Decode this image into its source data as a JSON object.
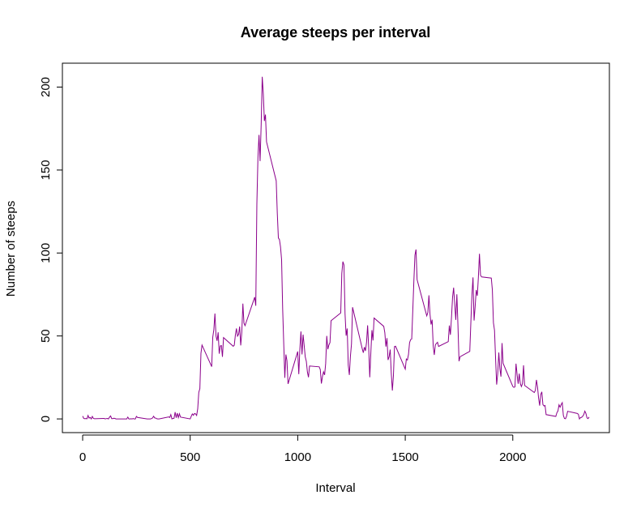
{
  "chart_data": {
    "type": "line",
    "title": "Average steeps per interval",
    "x_label": "Interval",
    "y_label": "Number of steeps",
    "color": "#8b008b",
    "x": [
      0,
      5,
      10,
      15,
      20,
      25,
      30,
      35,
      40,
      45,
      50,
      55,
      100,
      105,
      110,
      115,
      120,
      125,
      130,
      135,
      140,
      145,
      150,
      155,
      200,
      205,
      210,
      215,
      220,
      225,
      230,
      235,
      240,
      245,
      250,
      255,
      300,
      305,
      310,
      315,
      320,
      325,
      330,
      335,
      340,
      345,
      350,
      355,
      400,
      405,
      410,
      415,
      420,
      425,
      430,
      435,
      440,
      445,
      450,
      455,
      500,
      505,
      510,
      515,
      520,
      525,
      530,
      535,
      540,
      545,
      550,
      555,
      600,
      605,
      610,
      615,
      620,
      625,
      630,
      635,
      640,
      645,
      650,
      655,
      700,
      705,
      710,
      715,
      720,
      725,
      730,
      735,
      740,
      745,
      750,
      755,
      800,
      805,
      810,
      815,
      820,
      825,
      830,
      835,
      840,
      845,
      850,
      855,
      900,
      905,
      910,
      915,
      920,
      925,
      930,
      935,
      940,
      945,
      950,
      955,
      1000,
      1005,
      1010,
      1015,
      1020,
      1025,
      1030,
      1035,
      1040,
      1045,
      1050,
      1055,
      1100,
      1105,
      1110,
      1115,
      1120,
      1125,
      1130,
      1135,
      1140,
      1145,
      1150,
      1155,
      1200,
      1205,
      1210,
      1215,
      1220,
      1225,
      1230,
      1235,
      1240,
      1245,
      1250,
      1255,
      1300,
      1305,
      1310,
      1315,
      1320,
      1325,
      1330,
      1335,
      1340,
      1345,
      1350,
      1355,
      1400,
      1405,
      1410,
      1415,
      1420,
      1425,
      1430,
      1435,
      1440,
      1445,
      1450,
      1455,
      1500,
      1505,
      1510,
      1515,
      1520,
      1525,
      1530,
      1535,
      1540,
      1545,
      1550,
      1555,
      1600,
      1605,
      1610,
      1615,
      1620,
      1625,
      1630,
      1635,
      1640,
      1645,
      1650,
      1655,
      1700,
      1705,
      1710,
      1715,
      1720,
      1725,
      1730,
      1735,
      1740,
      1745,
      1750,
      1755,
      1800,
      1805,
      1810,
      1815,
      1820,
      1825,
      1830,
      1835,
      1840,
      1845,
      1850,
      1855,
      1900,
      1905,
      1910,
      1915,
      1920,
      1925,
      1930,
      1935,
      1940,
      1945,
      1950,
      1955,
      2000,
      2005,
      2010,
      2015,
      2020,
      2025,
      2030,
      2035,
      2040,
      2045,
      2050,
      2055,
      2100,
      2105,
      2110,
      2115,
      2120,
      2125,
      2130,
      2135,
      2140,
      2145,
      2150,
      2155,
      2200,
      2205,
      2210,
      2215,
      2220,
      2225,
      2230,
      2235,
      2240,
      2245,
      2250,
      2255,
      2300,
      2305,
      2310,
      2315,
      2320,
      2325,
      2330,
      2335,
      2340,
      2345,
      2350,
      2355
    ],
    "values": [
      1.7,
      0.3,
      0.1,
      0.2,
      0.1,
      2.1,
      0.5,
      0.9,
      0,
      1.5,
      0.3,
      0.1,
      0.3,
      0,
      0.2,
      0.3,
      0,
      1.1,
      1.8,
      0.2,
      0.2,
      0.4,
      0.3,
      0,
      0,
      0,
      1.1,
      0,
      0,
      0.1,
      0,
      0.2,
      0,
      0,
      1.5,
      0.9,
      0,
      0,
      0,
      0,
      0.2,
      0.6,
      1.6,
      0.6,
      0.5,
      0.1,
      0,
      0,
      1.2,
      0.9,
      2.6,
      0,
      0.3,
      0.4,
      4.1,
      0.7,
      3.5,
      0.8,
      3.1,
      1.1,
      0,
      1.6,
      3,
      2.2,
      3.3,
      3,
      2.1,
      6.1,
      16,
      18.3,
      39.5,
      44.5,
      31.5,
      49.3,
      53.8,
      63.5,
      50,
      47.1,
      52.2,
      39.3,
      44,
      44.2,
      37.4,
      49,
      43.8,
      44.4,
      50.5,
      54.5,
      49.9,
      51,
      55.7,
      44.3,
      52.3,
      69.5,
      57.8,
      56.2,
      73.4,
      68.2,
      129.4,
      157.5,
      171.2,
      155.4,
      177.3,
      206.2,
      195.9,
      179.6,
      183.4,
      167,
      143.5,
      124,
      109.1,
      108.1,
      103.7,
      95.96,
      66.2,
      45.2,
      24.8,
      38.8,
      34.98,
      21.1,
      40.6,
      26.98,
      42.4,
      52.7,
      38.9,
      50.8,
      44.3,
      37.4,
      34.7,
      28.3,
      25.1,
      31.9,
      31.4,
      29.7,
      21.3,
      25.5,
      28.4,
      26.5,
      33.4,
      50,
      42,
      44.6,
      46,
      59.2,
      63.9,
      87.7,
      94.8,
      92.8,
      63.4,
      50.2,
      54.5,
      32.4,
      26.5,
      37.7,
      45.1,
      67.3,
      42.3,
      39.9,
      43.3,
      40.98,
      46.2,
      56.4,
      42.8,
      25.1,
      39.96,
      53.5,
      47.3,
      60.8,
      55.8,
      51.96,
      43.6,
      48.7,
      35.5,
      37.5,
      41.8,
      27.5,
      17.1,
      26.1,
      43.6,
      43.8,
      30,
      36.1,
      35.5,
      38.8,
      45.96,
      47.8,
      48.1,
      65.3,
      82.9,
      98.7,
      102.1,
      83.96,
      62.1,
      64.1,
      74.5,
      63.2,
      56.9,
      59.8,
      43.9,
      38.6,
      44.7,
      45.5,
      46.2,
      43.7,
      46.6,
      56.3,
      50.7,
      61.2,
      73.4,
      79.1,
      68.9,
      59.7,
      75.1,
      56.5,
      34.8,
      37.5,
      40.7,
      58,
      74.7,
      85.3,
      59.3,
      67.8,
      77.7,
      74.2,
      85.3,
      99.5,
      86.6,
      85.6,
      84.9,
      77.8,
      58,
      53.4,
      36.3,
      20.7,
      27.4,
      40,
      30.2,
      25.5,
      45.7,
      33.5,
      19.6,
      19,
      19.3,
      33.3,
      26.8,
      21.2,
      27.3,
      21.3,
      19.5,
      21.3,
      32.3,
      20.2,
      15.9,
      17.2,
      23.5,
      19.2,
      12.5,
      8,
      14.7,
      16.3,
      8.7,
      7.8,
      8.1,
      2.6,
      1.5,
      3.7,
      4.8,
      8.5,
      7.1,
      8.7,
      9.8,
      2.2,
      0.3,
      0.1,
      1.6,
      4.6,
      3.3,
      2.8,
      0,
      0.8,
      0.96,
      1.6,
      2.6,
      4.7,
      3.3,
      0.6,
      0.2,
      1.1
    ],
    "xlim": [
      -94.2,
      2449.2
    ],
    "ylim": [
      -8.25,
      214.4
    ],
    "xticks": [
      0,
      500,
      1000,
      1500,
      2000
    ],
    "yticks": [
      0,
      50,
      100,
      150,
      200
    ]
  }
}
